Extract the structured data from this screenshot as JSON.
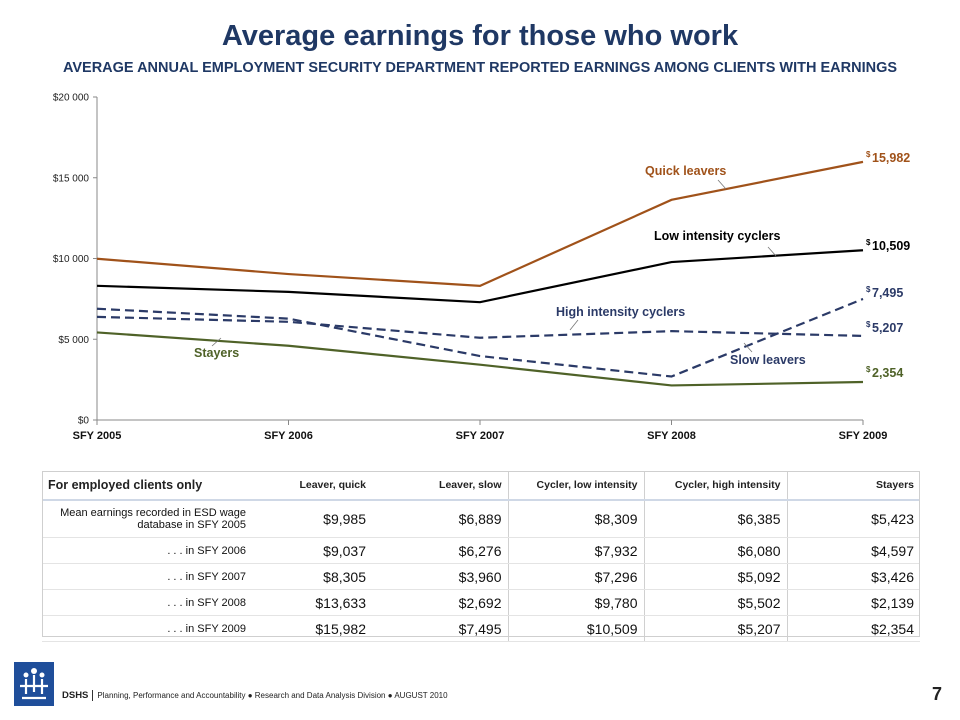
{
  "title": "Average earnings for those who work",
  "subtitle": "AVERAGE ANNUAL EMPLOYMENT SECURITY DEPARTMENT REPORTED EARNINGS AMONG CLIENTS WITH EARNINGS",
  "chart_data": {
    "type": "line",
    "categories": [
      "SFY 2005",
      "SFY 2006",
      "SFY 2007",
      "SFY 2008",
      "SFY 2009"
    ],
    "ylim": [
      0,
      20000
    ],
    "yticks": [
      {
        "value": 0,
        "label": "$0"
      },
      {
        "value": 5000,
        "label": "$5 000"
      },
      {
        "value": 10000,
        "label": "$10 000"
      },
      {
        "value": 15000,
        "label": "$15 000"
      },
      {
        "value": 20000,
        "label": "$20 000"
      }
    ],
    "grid": false,
    "series": [
      {
        "key": "quick",
        "name": "Quick leavers",
        "values": [
          9985,
          9037,
          8305,
          13633,
          15982
        ],
        "color": "#a0521a",
        "dash": "solid",
        "end_label": "15,982"
      },
      {
        "key": "lowcyc",
        "name": "Low intensity cyclers",
        "values": [
          8309,
          7932,
          7296,
          9780,
          10509
        ],
        "color": "#000000",
        "dash": "solid",
        "end_label": "10,509"
      },
      {
        "key": "slow",
        "name": "Slow leavers",
        "values": [
          6889,
          6276,
          3960,
          2692,
          7495
        ],
        "color": "#2b3a67",
        "dash": "dashed",
        "end_label": "7,495"
      },
      {
        "key": "highcyc",
        "name": "High intensity cyclers",
        "values": [
          6385,
          6080,
          5092,
          5502,
          5207
        ],
        "color": "#2b3a67",
        "dash": "dashed",
        "end_label": "5,207"
      },
      {
        "key": "stayers",
        "name": "Stayers",
        "values": [
          5423,
          4597,
          3426,
          2139,
          2354
        ],
        "color": "#4f6228",
        "dash": "solid",
        "end_label": "2,354"
      }
    ],
    "currency_symbol": "$"
  },
  "table": {
    "corner": "For employed clients only",
    "headers": [
      "Leaver, quick",
      "Leaver, slow",
      "Cycler, low intensity",
      "Cycler, high intensity",
      "Stayers"
    ],
    "rows": [
      {
        "label": "Mean earnings recorded in ESD wage database in SFY 2005",
        "values": [
          "$9,985",
          "$6,889",
          "$8,309",
          "$6,385",
          "$5,423"
        ]
      },
      {
        "label": ". . . in SFY 2006",
        "values": [
          "$9,037",
          "$6,276",
          "$7,932",
          "$6,080",
          "$4,597"
        ]
      },
      {
        "label": ". . . in SFY 2007",
        "values": [
          "$8,305",
          "$3,960",
          "$7,296",
          "$5,092",
          "$3,426"
        ]
      },
      {
        "label": ". . . in SFY 2008",
        "values": [
          "$13,633",
          "$2,692",
          "$9,780",
          "$5,502",
          "$2,139"
        ]
      },
      {
        "label": ". . . in SFY 2009",
        "values": [
          "$15,982",
          "$7,495",
          "$10,509",
          "$5,207",
          "$2,354"
        ]
      }
    ]
  },
  "footer": {
    "org": "DSHS",
    "text": "Planning, Performance and Accountability ● Research and Data Analysis Division ● AUGUST 2010",
    "page": "7"
  },
  "colors": {
    "title": "#1f3864",
    "logo": "#1f4e9a"
  }
}
